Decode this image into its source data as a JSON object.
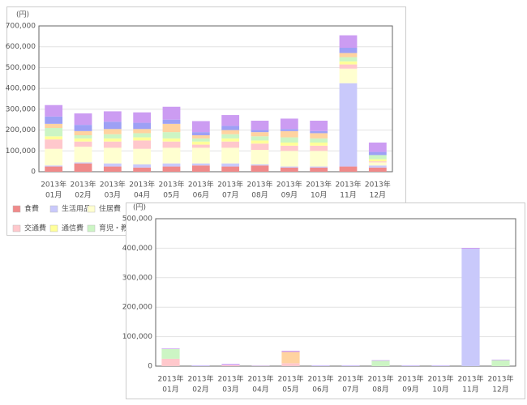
{
  "chart_data": [
    {
      "type": "bar",
      "stacked": true,
      "unit_label": "(円)",
      "grid": true,
      "categories": [
        [
          "2013年",
          "01月"
        ],
        [
          "2013年",
          "02月"
        ],
        [
          "2013年",
          "03月"
        ],
        [
          "2013年",
          "04月"
        ],
        [
          "2013年",
          "05月"
        ],
        [
          "2013年",
          "06月"
        ],
        [
          "2013年",
          "07月"
        ],
        [
          "2013年",
          "08月"
        ],
        [
          "2013年",
          "09月"
        ],
        [
          "2013年",
          "10月"
        ],
        [
          "2013年",
          "11月"
        ],
        [
          "2013年",
          "12月"
        ]
      ],
      "ylim": [
        0,
        700000
      ],
      "yticks": [
        0,
        {
          "value": 100000,
          "label": "100,000"
        },
        {
          "value": 200000,
          "label": "200,000"
        },
        {
          "value": 300000,
          "label": "300,000"
        },
        {
          "value": 400000,
          "label": "400,000"
        },
        {
          "value": 500000,
          "label": "500,000"
        },
        {
          "value": 600000,
          "label": "600,000"
        },
        {
          "value": 700000,
          "label": "700,000"
        }
      ],
      "series": [
        {
          "name": "食費",
          "color": "#f08a8a",
          "values": [
            25000,
            40000,
            25000,
            20000,
            25000,
            30000,
            25000,
            30000,
            20000,
            20000,
            25000,
            20000
          ]
        },
        {
          "name": "生活用品",
          "color": "#c9c9fb",
          "values": [
            5000,
            5000,
            15000,
            15000,
            15000,
            10000,
            15000,
            5000,
            5000,
            5000,
            400000,
            10000
          ]
        },
        {
          "name": "住居費",
          "color": "#ffffd0",
          "values": [
            80000,
            75000,
            75000,
            75000,
            75000,
            75000,
            75000,
            70000,
            75000,
            75000,
            70000,
            15000
          ]
        },
        {
          "name": "交通費",
          "color": "#ffc8cc",
          "values": [
            45000,
            25000,
            30000,
            40000,
            30000,
            15000,
            30000,
            30000,
            25000,
            25000,
            20000,
            5000
          ]
        },
        {
          "name": "通信費",
          "color": "#ffff99",
          "values": [
            15000,
            15000,
            15000,
            15000,
            15000,
            15000,
            15000,
            15000,
            15000,
            15000,
            15000,
            10000
          ]
        },
        {
          "name": "育児・教育",
          "color": "#ccf5c4",
          "values": [
            40000,
            15000,
            20000,
            20000,
            30000,
            15000,
            20000,
            20000,
            25000,
            20000,
            20000,
            20000
          ]
        },
        {
          "color": "#ffd3a0",
          "values": [
            20000,
            20000,
            25000,
            20000,
            40000,
            15000,
            20000,
            20000,
            30000,
            25000,
            20000,
            0
          ]
        },
        {
          "color": "#9da0f5",
          "values": [
            35000,
            30000,
            35000,
            30000,
            20000,
            15000,
            20000,
            10000,
            10000,
            10000,
            25000,
            15000
          ]
        },
        {
          "color": "#cc9cf2",
          "values": [
            55000,
            55000,
            50000,
            50000,
            62000,
            53000,
            52000,
            45000,
            50000,
            50000,
            60000,
            45000
          ]
        }
      ]
    },
    {
      "type": "bar",
      "stacked": true,
      "unit_label": "(円)",
      "grid": true,
      "categories": [
        [
          "2013年",
          "01月"
        ],
        [
          "2013年",
          "02月"
        ],
        [
          "2013年",
          "03月"
        ],
        [
          "2013年",
          "04月"
        ],
        [
          "2013年",
          "05月"
        ],
        [
          "2013年",
          "06月"
        ],
        [
          "2013年",
          "07月"
        ],
        [
          "2013年",
          "08月"
        ],
        [
          "2013年",
          "09月"
        ],
        [
          "2013年",
          "10月"
        ],
        [
          "2013年",
          "11月"
        ],
        [
          "2013年",
          "12月"
        ]
      ],
      "ylim": [
        0,
        500000
      ],
      "yticks": [
        0,
        {
          "value": 100000,
          "label": "100,000"
        },
        {
          "value": 200000,
          "label": "200,000"
        },
        {
          "value": 300000,
          "label": "300,000"
        },
        {
          "value": 400000,
          "label": "400,000"
        },
        {
          "value": 500000,
          "label": "500,000"
        }
      ],
      "series": [
        {
          "color": "#ffc8cc",
          "values": [
            25000,
            0,
            3000,
            0,
            10000,
            0,
            0,
            0,
            0,
            0,
            0,
            0
          ]
        },
        {
          "color": "#ccf5c4",
          "values": [
            33000,
            0,
            0,
            0,
            0,
            0,
            0,
            18000,
            0,
            0,
            0,
            20000
          ]
        },
        {
          "color": "#ffd3a0",
          "values": [
            0,
            0,
            0,
            0,
            38000,
            0,
            0,
            0,
            0,
            0,
            0,
            0
          ]
        },
        {
          "color": "#c9c9fb",
          "values": [
            0,
            2000,
            0,
            0,
            0,
            2000,
            2000,
            0,
            2000,
            2000,
            398000,
            0
          ]
        },
        {
          "color": "#cc9cf2",
          "values": [
            2000,
            1000,
            4000,
            1000,
            4000,
            1000,
            1000,
            2000,
            1000,
            1000,
            3000,
            2000
          ]
        }
      ]
    }
  ]
}
